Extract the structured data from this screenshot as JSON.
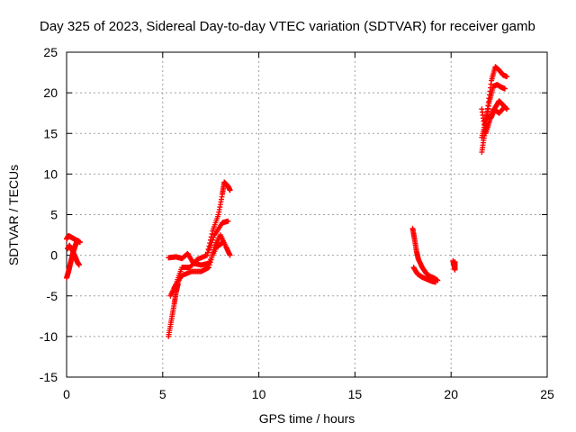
{
  "chart_data": {
    "type": "scatter",
    "title": "Day 325 of 2023, Sidereal Day-to-day VTEC variation (SDTVAR) for receiver gamb",
    "xlabel": "GPS time / hours",
    "ylabel": "SDTVAR / TECUs",
    "xlim": [
      0,
      25
    ],
    "ylim": [
      -15,
      25
    ],
    "xticks": [
      0,
      5,
      10,
      15,
      20,
      25
    ],
    "yticks": [
      -15,
      -10,
      -5,
      0,
      5,
      10,
      15,
      20,
      25
    ],
    "grid": true,
    "marker": "+",
    "series_color": "#ff0000",
    "segments": [
      {
        "name": "seg-a1",
        "points": [
          [
            0.0,
            2.0
          ],
          [
            0.1,
            2.4
          ],
          [
            0.25,
            2.2
          ],
          [
            0.4,
            2.0
          ],
          [
            0.55,
            1.8
          ],
          [
            0.7,
            1.6
          ]
        ]
      },
      {
        "name": "seg-a2",
        "points": [
          [
            0.0,
            -2.8
          ],
          [
            0.1,
            -2.0
          ],
          [
            0.2,
            -1.0
          ],
          [
            0.3,
            0.0
          ],
          [
            0.4,
            0.8
          ],
          [
            0.5,
            1.5
          ],
          [
            0.6,
            1.8
          ]
        ]
      },
      {
        "name": "seg-a3",
        "points": [
          [
            0.05,
            0.8
          ],
          [
            0.15,
            1.2
          ],
          [
            0.3,
            0.6
          ],
          [
            0.45,
            -0.2
          ],
          [
            0.55,
            -0.8
          ],
          [
            0.65,
            -1.2
          ]
        ]
      },
      {
        "name": "seg-b1",
        "points": [
          [
            5.3,
            -10.0
          ],
          [
            5.45,
            -8.0
          ],
          [
            5.6,
            -6.0
          ],
          [
            5.7,
            -4.5
          ],
          [
            5.8,
            -3.5
          ]
        ]
      },
      {
        "name": "seg-b2",
        "points": [
          [
            5.3,
            -0.3
          ],
          [
            5.7,
            -0.2
          ],
          [
            6.0,
            -0.4
          ],
          [
            6.3,
            0.2
          ],
          [
            6.6,
            -1.0
          ],
          [
            7.0,
            -1.2
          ],
          [
            7.4,
            -1.0
          ],
          [
            7.8,
            1.0
          ],
          [
            8.1,
            1.5
          ]
        ]
      },
      {
        "name": "seg-b3",
        "points": [
          [
            5.4,
            -5.0
          ],
          [
            5.7,
            -3.5
          ],
          [
            6.0,
            -1.5
          ],
          [
            6.4,
            -1.5
          ],
          [
            6.8,
            -0.5
          ],
          [
            7.3,
            0.0
          ],
          [
            7.7,
            2.5
          ],
          [
            8.1,
            4.0
          ],
          [
            8.4,
            4.2
          ]
        ]
      },
      {
        "name": "seg-b4",
        "points": [
          [
            5.6,
            -4.0
          ],
          [
            6.0,
            -2.5
          ],
          [
            6.5,
            -2.0
          ],
          [
            7.0,
            -2.0
          ],
          [
            7.4,
            -1.5
          ],
          [
            7.7,
            1.0
          ],
          [
            8.0,
            2.5
          ],
          [
            8.3,
            1.0
          ],
          [
            8.5,
            0.0
          ]
        ]
      },
      {
        "name": "seg-b5",
        "points": [
          [
            7.3,
            0.0
          ],
          [
            7.6,
            3.0
          ],
          [
            7.9,
            5.0
          ],
          [
            8.1,
            7.5
          ],
          [
            8.2,
            9.0
          ],
          [
            8.4,
            8.5
          ],
          [
            8.5,
            8.0
          ]
        ]
      },
      {
        "name": "seg-c1",
        "points": [
          [
            18.0,
            3.3
          ],
          [
            18.1,
            2.0
          ],
          [
            18.2,
            0.5
          ],
          [
            18.3,
            -0.5
          ],
          [
            18.5,
            -1.5
          ],
          [
            18.7,
            -2.2
          ],
          [
            18.9,
            -2.6
          ],
          [
            19.1,
            -2.8
          ],
          [
            19.3,
            -3.1
          ]
        ]
      },
      {
        "name": "seg-c2",
        "points": [
          [
            18.05,
            -1.5
          ],
          [
            18.25,
            -2.3
          ],
          [
            18.5,
            -2.7
          ],
          [
            18.8,
            -3.0
          ],
          [
            19.0,
            -3.2
          ],
          [
            19.2,
            -3.3
          ]
        ]
      },
      {
        "name": "seg-c3",
        "points": [
          [
            20.1,
            -0.7
          ],
          [
            20.15,
            -1.2
          ],
          [
            20.2,
            -1.8
          ],
          [
            20.2,
            -0.8
          ]
        ]
      },
      {
        "name": "seg-d1",
        "points": [
          [
            21.6,
            12.7
          ],
          [
            21.75,
            15.0
          ],
          [
            21.9,
            18.0
          ],
          [
            22.1,
            21.5
          ],
          [
            22.3,
            23.2
          ],
          [
            22.5,
            22.8
          ],
          [
            22.7,
            22.2
          ],
          [
            22.9,
            22.0
          ]
        ]
      },
      {
        "name": "seg-d2",
        "points": [
          [
            21.6,
            14.5
          ],
          [
            21.8,
            16.5
          ],
          [
            22.0,
            19.0
          ],
          [
            22.2,
            20.8
          ],
          [
            22.4,
            21.0
          ],
          [
            22.6,
            20.7
          ],
          [
            22.8,
            20.5
          ]
        ]
      },
      {
        "name": "seg-d3",
        "points": [
          [
            21.7,
            16.5
          ],
          [
            21.9,
            17.0
          ],
          [
            22.1,
            17.0
          ],
          [
            22.3,
            18.2
          ],
          [
            22.5,
            19.0
          ],
          [
            22.7,
            18.5
          ],
          [
            22.9,
            18.0
          ]
        ]
      },
      {
        "name": "seg-d4",
        "points": [
          [
            21.6,
            18.0
          ],
          [
            21.8,
            15.0
          ],
          [
            22.0,
            16.5
          ],
          [
            22.2,
            18.0
          ],
          [
            22.5,
            17.5
          ],
          [
            22.8,
            18.3
          ]
        ]
      }
    ]
  }
}
